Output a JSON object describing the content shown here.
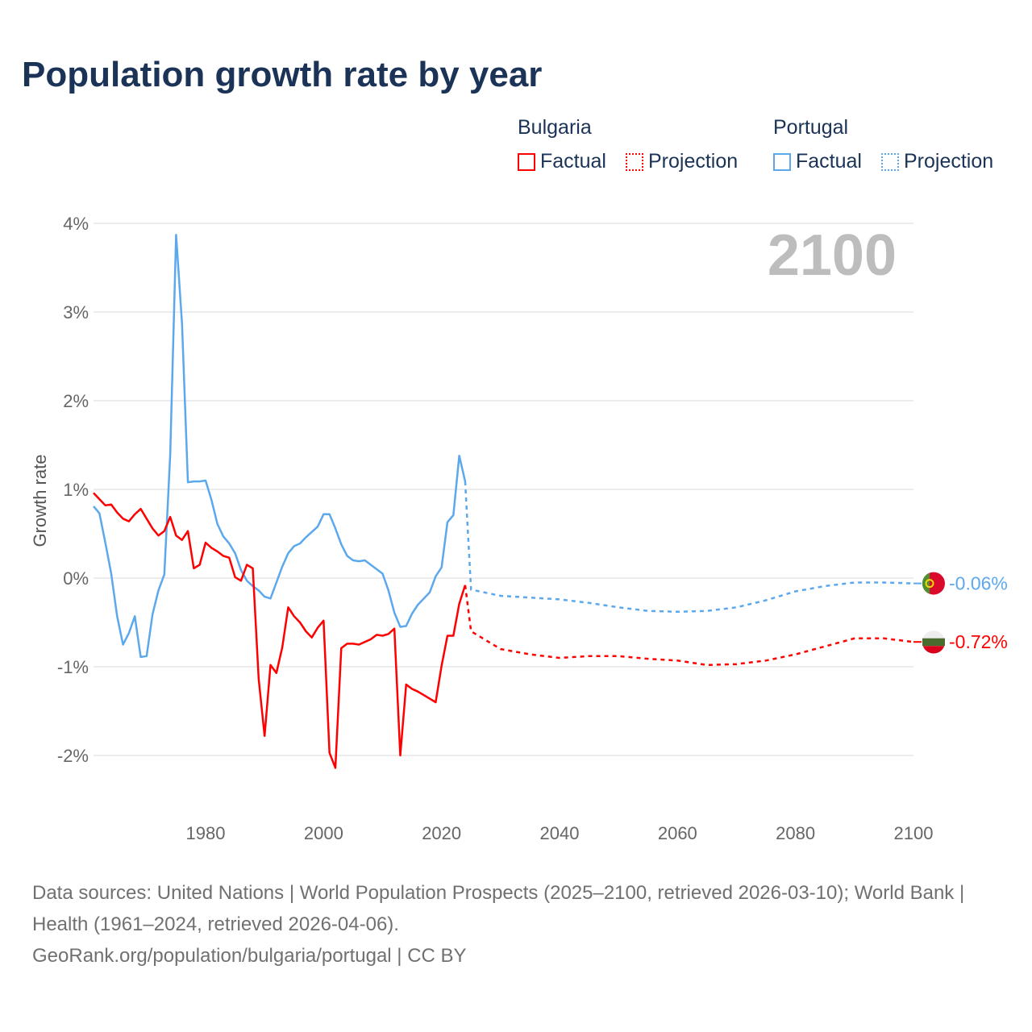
{
  "title": "Population growth rate by year",
  "legend": {
    "groups": [
      {
        "name": "Bulgaria",
        "factual": "Factual",
        "projection": "Projection"
      },
      {
        "name": "Portugal",
        "factual": "Factual",
        "projection": "Projection"
      }
    ]
  },
  "current_year": "2100",
  "footer": {
    "sources": "Data sources: United Nations | World Population Prospects (2025–2100, retrieved 2026-03-10); World Bank | Health (1961–2024, retrieved 2026-04-06).",
    "credit": "GeoRank.org/population/bulgaria/portugal | CC BY"
  },
  "chart_data": {
    "type": "line",
    "title": "Population growth rate by year",
    "xlabel": "",
    "ylabel": "Growth rate",
    "xlim": [
      1961,
      2100
    ],
    "ylim": [
      -2.5,
      4.2
    ],
    "x_ticks": [
      1980,
      2000,
      2020,
      2040,
      2060,
      2080,
      2100
    ],
    "y_ticks": [
      {
        "v": 4,
        "label": "4%"
      },
      {
        "v": 3,
        "label": "3%"
      },
      {
        "v": 2,
        "label": "2%"
      },
      {
        "v": 1,
        "label": "1%"
      },
      {
        "v": 0,
        "label": "0%"
      },
      {
        "v": -1,
        "label": "-1%"
      },
      {
        "v": -2,
        "label": "-2%"
      }
    ],
    "grid": true,
    "legend_position": "top-right",
    "series": [
      {
        "name": "Bulgaria",
        "color": "#ff0000",
        "end_label": "-0.72%",
        "factual_start": 1961,
        "factual": [
          0.96,
          0.89,
          0.82,
          0.83,
          0.74,
          0.67,
          0.64,
          0.72,
          0.78,
          0.67,
          0.56,
          0.48,
          0.53,
          0.69,
          0.48,
          0.43,
          0.53,
          0.11,
          0.15,
          0.4,
          0.34,
          0.3,
          0.25,
          0.23,
          0.01,
          -0.03,
          0.15,
          0.11,
          -1.14,
          -1.78,
          -0.98,
          -1.07,
          -0.78,
          -0.33,
          -0.43,
          -0.5,
          -0.6,
          -0.67,
          -0.56,
          -0.48,
          -1.97,
          -2.14,
          -0.79,
          -0.74,
          -0.74,
          -0.75,
          -0.72,
          -0.69,
          -0.64,
          -0.65,
          -0.63,
          -0.57,
          -2.0,
          -1.2,
          -1.25,
          -1.28,
          -1.32,
          -1.36,
          -1.4,
          -0.99,
          -0.65,
          -0.65,
          -0.29,
          -0.08
        ],
        "projection_years": [
          2024,
          2025,
          2030,
          2035,
          2040,
          2045,
          2050,
          2055,
          2060,
          2065,
          2070,
          2075,
          2080,
          2085,
          2090,
          2095,
          2100
        ],
        "projection": [
          -0.08,
          -0.6,
          -0.8,
          -0.86,
          -0.9,
          -0.88,
          -0.88,
          -0.91,
          -0.93,
          -0.98,
          -0.97,
          -0.93,
          -0.86,
          -0.77,
          -0.68,
          -0.68,
          -0.72
        ]
      },
      {
        "name": "Portugal",
        "color": "#5ca8ec",
        "end_label": "-0.06%",
        "factual_start": 1961,
        "factual": [
          0.81,
          0.73,
          0.4,
          0.05,
          -0.43,
          -0.75,
          -0.62,
          -0.43,
          -0.89,
          -0.88,
          -0.41,
          -0.14,
          0.04,
          1.39,
          3.87,
          2.87,
          1.08,
          1.09,
          1.09,
          1.1,
          0.88,
          0.61,
          0.47,
          0.39,
          0.28,
          0.09,
          -0.03,
          -0.09,
          -0.14,
          -0.21,
          -0.23,
          -0.05,
          0.13,
          0.28,
          0.36,
          0.39,
          0.46,
          0.52,
          0.58,
          0.72,
          0.72,
          0.56,
          0.38,
          0.25,
          0.2,
          0.19,
          0.2,
          0.15,
          0.1,
          0.05,
          -0.14,
          -0.39,
          -0.55,
          -0.54,
          -0.4,
          -0.3,
          -0.23,
          -0.16,
          0.02,
          0.12,
          0.63,
          0.71,
          1.38,
          1.09
        ],
        "projection_years": [
          2024,
          2025,
          2030,
          2035,
          2040,
          2045,
          2050,
          2055,
          2060,
          2065,
          2070,
          2075,
          2080,
          2085,
          2090,
          2095,
          2100
        ],
        "projection": [
          1.09,
          -0.13,
          -0.2,
          -0.22,
          -0.24,
          -0.28,
          -0.33,
          -0.37,
          -0.38,
          -0.37,
          -0.33,
          -0.25,
          -0.15,
          -0.09,
          -0.05,
          -0.05,
          -0.06
        ]
      }
    ]
  }
}
